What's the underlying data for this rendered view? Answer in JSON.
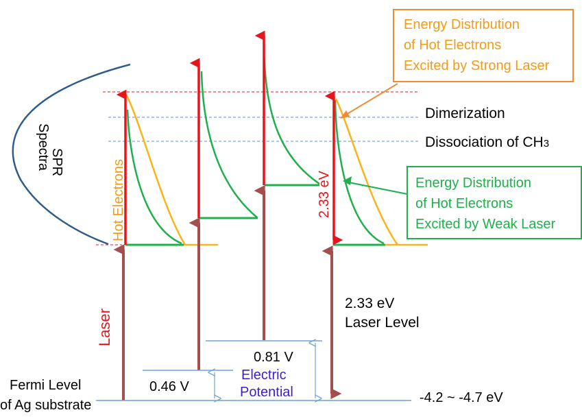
{
  "labels": {
    "spr_line1": "SPR",
    "spr_line2": "Spectra",
    "hot_electrons": "Hot Electrons",
    "dimerization": "Dimerization",
    "dissociation": "Dissociation of CH",
    "dissociation_sub": "3",
    "energy_233_rotated": "2.33 eV",
    "laser_rotated": "Laser",
    "laser_level_line1": "2.33 eV",
    "laser_level_line2": "Laser Level",
    "v081": "0.81 V",
    "v046": "0.46 V",
    "electric_line1": "Electric",
    "electric_line2": "Potential",
    "fermi_line1": "Fermi Level",
    "fermi_line2": "of Ag substrate",
    "work_function": "-4.2 ~ -4.7 eV"
  },
  "callouts": {
    "strong": [
      "Energy Distribution",
      "of Hot Electrons",
      "Excited by Strong Laser"
    ],
    "weak": [
      "Energy Distribution",
      "of Hot Electrons",
      "Excited by Weak Laser"
    ]
  },
  "colors": {
    "red": "#e8141b",
    "laser_arrow": "#a64d4d",
    "green": "#1eb04b",
    "yellow": "#f8b418",
    "orange_text": "#f39b17",
    "orange_border": "#f18b33",
    "blue_curve": "#2e5b8c",
    "dashed_blue": "#5b8fd0",
    "thin_blue": "#6fa4d6",
    "purple": "#3a1ecf",
    "black": "#000000"
  }
}
